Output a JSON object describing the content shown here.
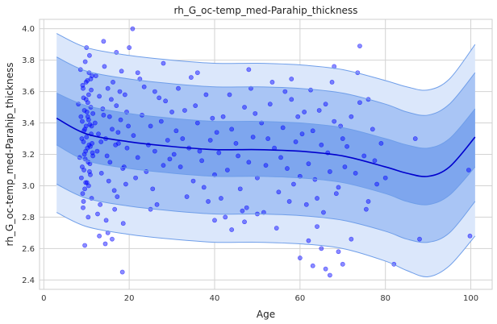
{
  "chart_data": {
    "type": "scatter",
    "title": "rh_G_oc-temp_med-Parahip_thickness",
    "xlabel": "Age",
    "ylabel": "rh_G_oc-temp_med-Parahip_thickness",
    "xlim": [
      -1,
      105
    ],
    "ylim": [
      2.34,
      4.06
    ],
    "xticks": [
      0,
      20,
      40,
      60,
      80,
      100
    ],
    "yticks": [
      2.4,
      2.6,
      2.8,
      3.0,
      3.2,
      3.4,
      3.6,
      3.8,
      4.0
    ],
    "grid": true,
    "colors": {
      "points": "#0000ff",
      "median_line": "#0000cd",
      "inner_band": "#7ea6ee",
      "middle_band": "#a9c5f5",
      "outer_band": "#dbe7fb",
      "band_edge": "#6f9ee9",
      "grid": "#d3d3d3",
      "frame": "#cfcfcf"
    },
    "centile_curves": {
      "x": [
        3,
        10,
        20,
        30,
        40,
        50,
        60,
        70,
        80,
        85,
        90,
        95,
        101
      ],
      "median": [
        3.43,
        3.33,
        3.28,
        3.25,
        3.23,
        3.23,
        3.22,
        3.19,
        3.12,
        3.08,
        3.06,
        3.12,
        3.31
      ],
      "inner_upper": [
        3.59,
        3.51,
        3.46,
        3.43,
        3.41,
        3.41,
        3.4,
        3.37,
        3.3,
        3.26,
        3.24,
        3.3,
        3.49
      ],
      "inner_lower": [
        3.26,
        3.16,
        3.11,
        3.08,
        3.06,
        3.06,
        3.05,
        3.02,
        2.95,
        2.9,
        2.88,
        2.94,
        3.12
      ],
      "middle_upper": [
        3.82,
        3.73,
        3.68,
        3.65,
        3.63,
        3.63,
        3.62,
        3.59,
        3.52,
        3.47,
        3.45,
        3.52,
        3.72
      ],
      "middle_lower": [
        3.01,
        2.92,
        2.87,
        2.84,
        2.82,
        2.82,
        2.81,
        2.78,
        2.71,
        2.66,
        2.64,
        2.7,
        2.9
      ],
      "outer_upper": [
        3.97,
        3.88,
        3.83,
        3.8,
        3.78,
        3.78,
        3.77,
        3.74,
        3.67,
        3.63,
        3.61,
        3.68,
        3.9
      ],
      "outer_lower": [
        2.83,
        2.74,
        2.69,
        2.66,
        2.64,
        2.64,
        2.63,
        2.6,
        2.52,
        2.46,
        2.42,
        2.49,
        2.68
      ]
    },
    "points": [
      [
        8.1,
        3.52
      ],
      [
        8.4,
        3.18
      ],
      [
        8.6,
        3.74
      ],
      [
        8.8,
        3.05
      ],
      [
        9.0,
        3.41
      ],
      [
        9.1,
        2.95
      ],
      [
        9.2,
        3.62
      ],
      [
        9.3,
        3.28
      ],
      [
        9.4,
        3.1
      ],
      [
        9.5,
        3.48
      ],
      [
        9.6,
        3.36
      ],
      [
        9.7,
        3.79
      ],
      [
        9.8,
        3.22
      ],
      [
        9.9,
        3.55
      ],
      [
        10.0,
        3.31
      ],
      [
        10.1,
        3.02
      ],
      [
        10.2,
        3.67
      ],
      [
        10.3,
        3.44
      ],
      [
        10.4,
        3.15
      ],
      [
        10.5,
        3.58
      ],
      [
        10.6,
        3.26
      ],
      [
        10.7,
        3.83
      ],
      [
        10.8,
        3.39
      ],
      [
        10.9,
        3.07
      ],
      [
        11.0,
        3.5
      ],
      [
        11.1,
        3.33
      ],
      [
        11.2,
        2.92
      ],
      [
        11.3,
        3.7
      ],
      [
        11.4,
        3.21
      ],
      [
        11.5,
        3.46
      ],
      [
        9.0,
        3.12
      ],
      [
        9.3,
        3.56
      ],
      [
        9.6,
        2.98
      ],
      [
        9.9,
        3.66
      ],
      [
        10.2,
        3.24
      ],
      [
        10.5,
        3.42
      ],
      [
        10.8,
        3.14
      ],
      [
        11.1,
        3.61
      ],
      [
        9.4,
        3.35
      ],
      [
        10.0,
        3.88
      ],
      [
        9.2,
        2.86
      ],
      [
        10.4,
        2.8
      ],
      [
        9.8,
        3.02
      ],
      [
        10.6,
        3.72
      ],
      [
        11.2,
        3.38
      ],
      [
        8.9,
        3.3
      ],
      [
        9.5,
        3.2
      ],
      [
        10.1,
        3.47
      ],
      [
        10.7,
        3.09
      ],
      [
        11.3,
        3.27
      ],
      [
        9.1,
        3.64
      ],
      [
        9.7,
        3.17
      ],
      [
        10.3,
        3.53
      ],
      [
        10.9,
        3.25
      ],
      [
        8.7,
        3.44
      ],
      [
        9.3,
        2.9
      ],
      [
        9.9,
        3.38
      ],
      [
        10.5,
        3.0
      ],
      [
        11.0,
        3.68
      ],
      [
        11.5,
        3.19
      ],
      [
        12.0,
        3.4
      ],
      [
        12.5,
        3.22
      ],
      [
        13.0,
        3.57
      ],
      [
        13.5,
        3.08
      ],
      [
        14.0,
        3.45
      ],
      [
        14.5,
        3.3
      ],
      [
        15.0,
        3.62
      ],
      [
        15.5,
        3.15
      ],
      [
        16.0,
        3.36
      ],
      [
        16.5,
        2.97
      ],
      [
        17.0,
        3.51
      ],
      [
        17.5,
        3.27
      ],
      [
        18.0,
        3.42
      ],
      [
        18.5,
        3.11
      ],
      [
        19.0,
        3.58
      ],
      [
        19.5,
        3.24
      ],
      [
        12.2,
        3.7
      ],
      [
        13.2,
        2.88
      ],
      [
        14.2,
        3.76
      ],
      [
        15.2,
        3.03
      ],
      [
        16.2,
        3.66
      ],
      [
        17.2,
        2.93
      ],
      [
        18.2,
        3.73
      ],
      [
        19.2,
        3.01
      ],
      [
        12.8,
        3.33
      ],
      [
        13.8,
        3.49
      ],
      [
        14.8,
        3.19
      ],
      [
        15.8,
        3.55
      ],
      [
        16.8,
        3.26
      ],
      [
        17.8,
        3.6
      ],
      [
        18.8,
        3.12
      ],
      [
        19.8,
        3.38
      ],
      [
        13.4,
        3.28
      ],
      [
        15.4,
        3.44
      ],
      [
        17.4,
        3.34
      ],
      [
        19.4,
        3.47
      ],
      [
        12.6,
        2.82
      ],
      [
        14.6,
        2.78
      ],
      [
        16.6,
        2.85
      ],
      [
        18.6,
        2.76
      ],
      [
        14.0,
        3.92
      ],
      [
        17.0,
        3.85
      ],
      [
        20.8,
        4.0
      ],
      [
        20.0,
        3.88
      ],
      [
        18.4,
        2.45
      ],
      [
        15.0,
        2.7
      ],
      [
        16.0,
        2.66
      ],
      [
        14.4,
        2.63
      ],
      [
        9.6,
        2.62
      ],
      [
        13.0,
        2.68
      ],
      [
        21.0,
        3.32
      ],
      [
        22.0,
        3.18
      ],
      [
        23.0,
        3.45
      ],
      [
        24.0,
        3.09
      ],
      [
        25.0,
        3.38
      ],
      [
        26.0,
        3.22
      ],
      [
        27.0,
        3.56
      ],
      [
        28.0,
        3.13
      ],
      [
        29.0,
        3.29
      ],
      [
        30.0,
        3.47
      ],
      [
        21.5,
        3.05
      ],
      [
        23.5,
        3.63
      ],
      [
        25.5,
        2.98
      ],
      [
        27.5,
        3.41
      ],
      [
        29.5,
        3.17
      ],
      [
        22.5,
        3.68
      ],
      [
        24.5,
        3.26
      ],
      [
        26.5,
        2.88
      ],
      [
        28.5,
        3.54
      ],
      [
        30.5,
        3.2
      ],
      [
        31.0,
        3.35
      ],
      [
        32.0,
        3.12
      ],
      [
        33.0,
        3.48
      ],
      [
        34.0,
        3.24
      ],
      [
        35.0,
        3.03
      ],
      [
        36.0,
        3.4
      ],
      [
        37.0,
        3.16
      ],
      [
        38.0,
        3.58
      ],
      [
        39.0,
        3.29
      ],
      [
        40.0,
        3.07
      ],
      [
        31.5,
        3.62
      ],
      [
        33.5,
        2.93
      ],
      [
        35.5,
        3.51
      ],
      [
        37.5,
        2.99
      ],
      [
        39.5,
        3.43
      ],
      [
        32.5,
        3.3
      ],
      [
        34.5,
        3.69
      ],
      [
        36.5,
        3.22
      ],
      [
        38.5,
        2.9
      ],
      [
        40.5,
        3.34
      ],
      [
        28.0,
        3.78
      ],
      [
        25.0,
        2.85
      ],
      [
        41.0,
        3.21
      ],
      [
        42.0,
        3.44
      ],
      [
        43.0,
        3.1
      ],
      [
        44.0,
        3.36
      ],
      [
        45.0,
        3.27
      ],
      [
        46.0,
        2.98
      ],
      [
        47.0,
        3.5
      ],
      [
        48.0,
        3.15
      ],
      [
        49.0,
        3.31
      ],
      [
        50.0,
        3.05
      ],
      [
        41.5,
        2.92
      ],
      [
        43.5,
        3.58
      ],
      [
        45.5,
        3.19
      ],
      [
        47.5,
        2.86
      ],
      [
        49.5,
        3.46
      ],
      [
        42.5,
        2.8
      ],
      [
        46.5,
        2.84
      ],
      [
        48.5,
        3.62
      ],
      [
        51.0,
        3.4
      ],
      [
        52.0,
        3.13
      ],
      [
        53.0,
        3.52
      ],
      [
        54.0,
        3.24
      ],
      [
        55.0,
        2.96
      ],
      [
        56.0,
        3.37
      ],
      [
        57.0,
        3.11
      ],
      [
        58.0,
        3.55
      ],
      [
        59.0,
        3.28
      ],
      [
        60.0,
        3.06
      ],
      [
        51.5,
        2.83
      ],
      [
        53.5,
        3.66
      ],
      [
        55.5,
        3.18
      ],
      [
        57.5,
        2.9
      ],
      [
        59.5,
        3.44
      ],
      [
        52.5,
        3.3
      ],
      [
        54.5,
        2.73
      ],
      [
        56.5,
        3.6
      ],
      [
        58.5,
        3.01
      ],
      [
        60.5,
        3.33
      ],
      [
        61.0,
        3.47
      ],
      [
        62.0,
        3.14
      ],
      [
        63.0,
        3.35
      ],
      [
        64.0,
        2.92
      ],
      [
        65.0,
        3.26
      ],
      [
        66.0,
        3.52
      ],
      [
        67.0,
        3.09
      ],
      [
        68.0,
        3.41
      ],
      [
        69.0,
        2.99
      ],
      [
        70.0,
        3.3
      ],
      [
        61.5,
        2.88
      ],
      [
        62.5,
        3.61
      ],
      [
        63.5,
        3.04
      ],
      [
        64.5,
        3.48
      ],
      [
        65.5,
        2.83
      ],
      [
        66.5,
        3.21
      ],
      [
        67.5,
        3.66
      ],
      [
        68.5,
        2.95
      ],
      [
        69.5,
        3.38
      ],
      [
        70.5,
        3.12
      ],
      [
        60.0,
        2.54
      ],
      [
        62.0,
        2.65
      ],
      [
        63.0,
        2.49
      ],
      [
        65.0,
        2.6
      ],
      [
        67.0,
        2.43
      ],
      [
        66.0,
        2.47
      ],
      [
        70.0,
        2.5
      ],
      [
        69.0,
        2.58
      ],
      [
        64.0,
        2.74
      ],
      [
        72.0,
        2.66
      ],
      [
        71.0,
        3.25
      ],
      [
        72.0,
        3.44
      ],
      [
        73.0,
        3.08
      ],
      [
        74.0,
        3.53
      ],
      [
        75.0,
        3.19
      ],
      [
        76.0,
        2.9
      ],
      [
        77.0,
        3.36
      ],
      [
        78.0,
        3.01
      ],
      [
        73.5,
        3.72
      ],
      [
        75.5,
        2.85
      ],
      [
        74.0,
        3.89
      ],
      [
        76.0,
        3.55
      ],
      [
        77.5,
        3.16
      ],
      [
        79.0,
        3.27
      ],
      [
        80.0,
        3.05
      ],
      [
        82.0,
        2.5
      ],
      [
        87.0,
        3.3
      ],
      [
        88.0,
        2.66
      ],
      [
        99.5,
        3.1
      ],
      [
        99.8,
        2.68
      ],
      [
        40.0,
        2.78
      ],
      [
        44.0,
        2.72
      ],
      [
        47.0,
        2.77
      ],
      [
        50.0,
        2.82
      ],
      [
        36.0,
        3.72
      ],
      [
        48.0,
        3.74
      ],
      [
        58.0,
        3.68
      ],
      [
        68.0,
        3.76
      ],
      [
        22.0,
        3.72
      ],
      [
        26.0,
        3.6
      ]
    ]
  }
}
